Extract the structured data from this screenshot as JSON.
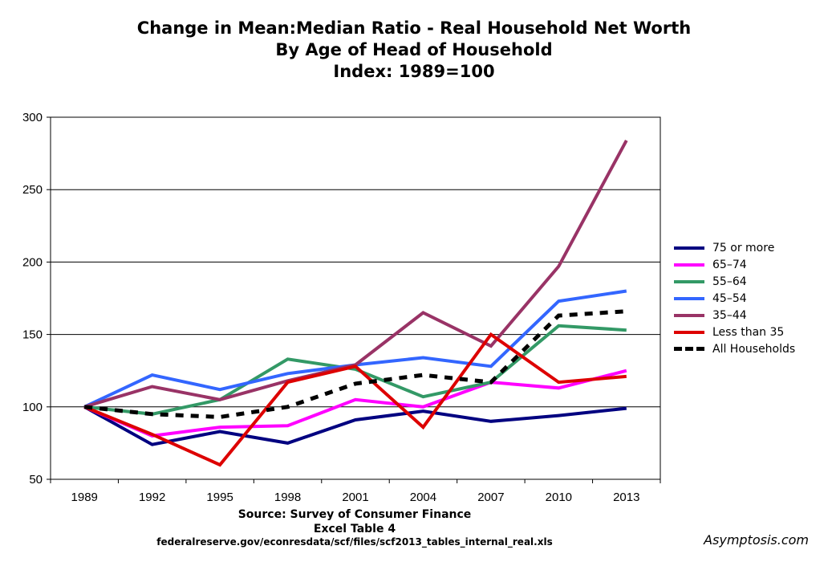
{
  "chart_data": {
    "type": "line",
    "title": "Change in Mean:Median Ratio - Real Household Net Worth",
    "subtitle": "By Age of Head of Household",
    "subtitle2": "Index: 1989=100",
    "xlabel": "",
    "ylabel": "",
    "categories": [
      "1989",
      "1992",
      "1995",
      "1998",
      "2001",
      "2004",
      "2007",
      "2010",
      "2013"
    ],
    "ylim": [
      50,
      300
    ],
    "yticks": [
      50,
      100,
      150,
      200,
      250,
      300
    ],
    "grid": "horizontal",
    "legend_position": "right",
    "series": [
      {
        "name": "75 or more",
        "color": "#000080",
        "style": "solid",
        "values": [
          100,
          74,
          83,
          75,
          91,
          97,
          90,
          94,
          99
        ]
      },
      {
        "name": "65–74",
        "color": "#ff00ff",
        "style": "solid",
        "values": [
          100,
          80,
          86,
          87,
          105,
          100,
          117,
          113,
          125
        ]
      },
      {
        "name": "55–64",
        "color": "#339966",
        "style": "solid",
        "values": [
          100,
          95,
          105,
          133,
          126,
          107,
          117,
          156,
          153
        ]
      },
      {
        "name": "45–54",
        "color": "#3366ff",
        "style": "solid",
        "values": [
          100,
          122,
          112,
          123,
          129,
          134,
          128,
          173,
          180
        ]
      },
      {
        "name": "35–44",
        "color": "#993366",
        "style": "solid",
        "values": [
          100,
          114,
          105,
          118,
          129,
          165,
          142,
          197,
          284
        ]
      },
      {
        "name": "Less than 35",
        "color": "#dd0000",
        "style": "solid",
        "values": [
          100,
          81,
          60,
          117,
          128,
          86,
          150,
          117,
          121
        ]
      },
      {
        "name": "All Households",
        "color": "#000000",
        "style": "dashed",
        "values": [
          100,
          95,
          93,
          100,
          116,
          122,
          117,
          163,
          166
        ]
      }
    ]
  },
  "source": {
    "line1": "Source: Survey of Consumer Finance",
    "line2": "Excel Table 4",
    "line3": "federalreserve.gov/econresdata/scf/files/scf2013_tables_internal_real.xls"
  },
  "watermark": "Asymptosis.com"
}
